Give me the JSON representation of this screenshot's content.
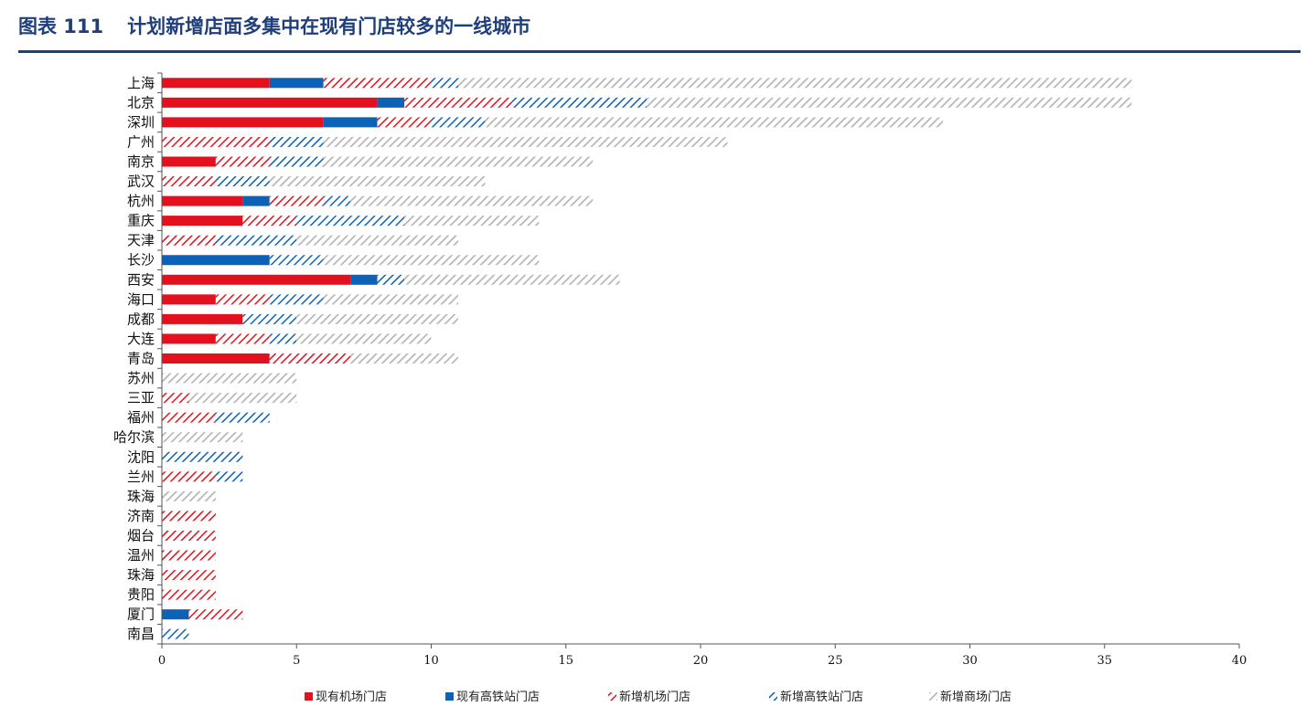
{
  "title": {
    "figure_no": "图表 111",
    "text": "计划新增店面多集中在现有门店较多的一线城市"
  },
  "colors": {
    "existing_airport": "#e3111d",
    "existing_rail": "#0c62b6",
    "new_airport": "#e3111d",
    "new_rail": "#0c62b6",
    "new_mall": "#b5b5b5",
    "axis": "#555555"
  },
  "chart_data": {
    "type": "bar",
    "orientation": "horizontal",
    "stacked": true,
    "title": "计划新增店面多集中在现有门店较多的一线城市",
    "xlabel": "",
    "ylabel": "",
    "xlim": [
      0,
      40
    ],
    "xticks": [
      0,
      5,
      10,
      15,
      20,
      25,
      30,
      35,
      40
    ],
    "grid": false,
    "legend_position": "bottom",
    "categories": [
      "上海",
      "北京",
      "深圳",
      "广州",
      "南京",
      "武汉",
      "杭州",
      "重庆",
      "天津",
      "长沙",
      "西安",
      "海口",
      "成都",
      "大连",
      "青岛",
      "苏州",
      "三亚",
      "福州",
      "哈尔滨",
      "沈阳",
      "兰州",
      "珠海",
      "济南",
      "烟台",
      "温州",
      "珠海",
      "贵阳",
      "厦门",
      "南昌"
    ],
    "series": [
      {
        "name": "现有机场门店",
        "pattern": "solid",
        "color": "#e3111d",
        "values": [
          4,
          8,
          6,
          0,
          2,
          0,
          3,
          3,
          0,
          0,
          7,
          2,
          3,
          2,
          4,
          0,
          0,
          0,
          0,
          0,
          0,
          0,
          0,
          0,
          0,
          0,
          0,
          0,
          0
        ]
      },
      {
        "name": "现有高铁站门店",
        "pattern": "solid",
        "color": "#0c62b6",
        "values": [
          2,
          1,
          2,
          0,
          0,
          0,
          1,
          0,
          0,
          4,
          1,
          0,
          0,
          0,
          0,
          0,
          0,
          0,
          0,
          0,
          0,
          0,
          0,
          0,
          0,
          0,
          0,
          1,
          0
        ]
      },
      {
        "name": "新增机场门店",
        "pattern": "hatch",
        "color": "#e3111d",
        "values": [
          4,
          4,
          2,
          4,
          2,
          2,
          2,
          2,
          2,
          0,
          0,
          2,
          0,
          2,
          3,
          0,
          1,
          2,
          0,
          0,
          2,
          0,
          2,
          2,
          2,
          2,
          2,
          2,
          0
        ]
      },
      {
        "name": "新增高铁站门店",
        "pattern": "hatch",
        "color": "#0c62b6",
        "values": [
          1,
          5,
          2,
          2,
          2,
          2,
          1,
          4,
          3,
          2,
          1,
          2,
          2,
          1,
          0,
          0,
          0,
          2,
          0,
          3,
          1,
          0,
          0,
          0,
          0,
          0,
          0,
          0,
          1
        ]
      },
      {
        "name": "新增商场门店",
        "pattern": "hatch",
        "color": "#b5b5b5",
        "values": [
          25,
          18,
          17,
          15,
          10,
          8,
          9,
          5,
          6,
          8,
          8,
          5,
          6,
          5,
          4,
          5,
          4,
          0,
          3,
          0,
          0,
          2,
          0,
          0,
          0,
          0,
          0,
          0,
          0
        ]
      }
    ]
  }
}
